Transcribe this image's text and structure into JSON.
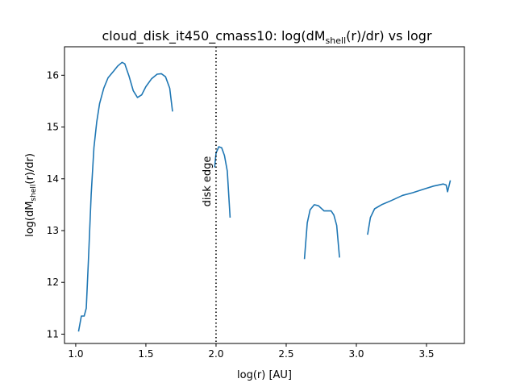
{
  "chart_data": {
    "type": "line",
    "title": {
      "prefix": "cloud_disk_it450_cmass10: log(dM",
      "subscript": "shell",
      "suffix": "(r)/dr) vs logr"
    },
    "xlabel": "log(r) [AU]",
    "ylabel": {
      "prefix": "log(dM",
      "subscript": "shell",
      "suffix": "(r)/dr)"
    },
    "xlim": [
      0.92,
      3.77
    ],
    "ylim": [
      10.82,
      16.55
    ],
    "xticks": [
      {
        "value": 1.0,
        "label": "1.0"
      },
      {
        "value": 1.5,
        "label": "1.5"
      },
      {
        "value": 2.0,
        "label": "2.0"
      },
      {
        "value": 2.5,
        "label": "2.5"
      },
      {
        "value": 3.0,
        "label": "3.0"
      },
      {
        "value": 3.5,
        "label": "3.5"
      }
    ],
    "yticks": [
      {
        "value": 11,
        "label": "11"
      },
      {
        "value": 12,
        "label": "12"
      },
      {
        "value": 13,
        "label": "13"
      },
      {
        "value": 14,
        "label": "14"
      },
      {
        "value": 15,
        "label": "15"
      },
      {
        "value": 16,
        "label": "16"
      }
    ],
    "grid": false,
    "line_color": "#1f77b4",
    "vline": {
      "x": 2.0,
      "style": "dotted",
      "color": "#000000",
      "label": "disk edge"
    },
    "segments": [
      [
        [
          1.02,
          11.05
        ],
        [
          1.04,
          11.35
        ],
        [
          1.06,
          11.35
        ],
        [
          1.075,
          11.5
        ],
        [
          1.09,
          12.4
        ],
        [
          1.11,
          13.7
        ],
        [
          1.13,
          14.6
        ],
        [
          1.15,
          15.1
        ],
        [
          1.17,
          15.45
        ],
        [
          1.2,
          15.75
        ],
        [
          1.23,
          15.95
        ],
        [
          1.27,
          16.08
        ],
        [
          1.3,
          16.18
        ],
        [
          1.33,
          16.25
        ],
        [
          1.35,
          16.22
        ],
        [
          1.38,
          15.98
        ],
        [
          1.41,
          15.7
        ],
        [
          1.44,
          15.57
        ],
        [
          1.47,
          15.62
        ],
        [
          1.5,
          15.78
        ],
        [
          1.54,
          15.93
        ],
        [
          1.58,
          16.02
        ],
        [
          1.61,
          16.03
        ],
        [
          1.64,
          15.97
        ],
        [
          1.67,
          15.75
        ],
        [
          1.69,
          15.3
        ]
      ],
      [
        [
          1.99,
          14.22
        ],
        [
          2.0,
          14.5
        ],
        [
          2.02,
          14.62
        ],
        [
          2.04,
          14.6
        ],
        [
          2.06,
          14.45
        ],
        [
          2.08,
          14.15
        ],
        [
          2.1,
          13.25
        ]
      ],
      [
        [
          2.63,
          12.45
        ],
        [
          2.65,
          13.15
        ],
        [
          2.67,
          13.4
        ],
        [
          2.7,
          13.5
        ],
        [
          2.73,
          13.48
        ],
        [
          2.77,
          13.38
        ],
        [
          2.8,
          13.38
        ],
        [
          2.82,
          13.38
        ],
        [
          2.84,
          13.3
        ],
        [
          2.86,
          13.1
        ],
        [
          2.88,
          12.48
        ]
      ],
      [
        [
          3.08,
          12.92
        ],
        [
          3.1,
          13.25
        ],
        [
          3.13,
          13.42
        ],
        [
          3.18,
          13.5
        ],
        [
          3.25,
          13.58
        ],
        [
          3.33,
          13.68
        ],
        [
          3.4,
          13.73
        ],
        [
          3.48,
          13.8
        ],
        [
          3.55,
          13.86
        ],
        [
          3.62,
          13.9
        ],
        [
          3.64,
          13.88
        ],
        [
          3.65,
          13.75
        ],
        [
          3.67,
          13.97
        ]
      ]
    ]
  }
}
